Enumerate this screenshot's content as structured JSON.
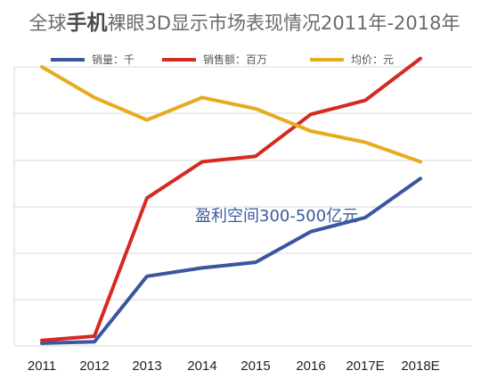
{
  "title": {
    "prefix": "全球",
    "emphasis": "手机",
    "rest": "裸眼3D显示市场表现情况2011年-2018年"
  },
  "annotation": "盈利空间300-500亿元",
  "colors": {
    "sales": "#3b55a0",
    "revenue": "#d42a22",
    "price": "#e6ab1e",
    "grid": "#d9d9d9",
    "axis_text": "#222222"
  },
  "chart_data": {
    "type": "line",
    "categories": [
      "2011",
      "2012",
      "2013",
      "2014",
      "2015",
      "2016",
      "2017E",
      "2018E"
    ],
    "ylim": [
      0,
      100
    ],
    "grid": true,
    "legend_position": "top",
    "series": [
      {
        "name": "销量：千",
        "color": "#3b55a0",
        "values": [
          1,
          1.5,
          25,
          28,
          30,
          41,
          46,
          60
        ]
      },
      {
        "name": "销售额：百万",
        "color": "#d42a22",
        "values": [
          2,
          3.5,
          53,
          66,
          68,
          83,
          88,
          103
        ]
      },
      {
        "name": "均价：元",
        "color": "#e6ab1e",
        "values": [
          100,
          89,
          81,
          89,
          85,
          77,
          73,
          66
        ]
      }
    ]
  }
}
